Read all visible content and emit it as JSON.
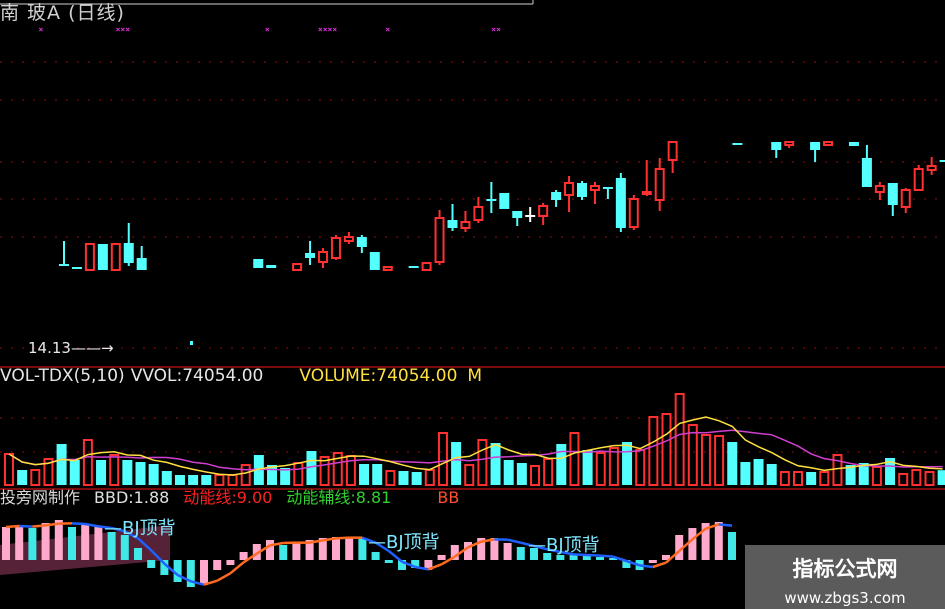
{
  "header": {
    "title": "南 玻A (日线)",
    "signal_row": "        ×               ×××                            ×          ××××          ×                     ××",
    "low_price_label": "14.13——→"
  },
  "volume_header": {
    "name": "VOL-TDX(5,10)",
    "vvol": "VVOL:74054.00",
    "volume": "VOLUME:74054.00",
    "truncated": "M"
  },
  "indicator_header": {
    "source": "投旁网制作",
    "bbd": "BBD:1.88",
    "momentum_line": "动能线:9.00",
    "momentum_aux_line": "动能辅线:8.81",
    "truncated": "BB"
  },
  "indicator_labels": [
    "—BJ顶背",
    "—BJ顶背",
    "—BJ顶背"
  ],
  "watermark": {
    "title": "指标公式网",
    "url": "www.zbgs3.com"
  },
  "colors": {
    "up": "#ff3030",
    "down": "#54ffff",
    "flat": "#ffffff",
    "grid": "#8a1010",
    "ma_short": "#ffe040",
    "ma_long": "#d040d0",
    "indicator_up": "#ffaacc",
    "indicator_down": "#40e8e8",
    "line_falling": "#2060ff",
    "line_rising": "#ff6a20"
  },
  "chart_data": [
    {
      "type": "candlestick",
      "title": "南 玻A (日线)",
      "lowest_marked": 14.13,
      "candles": [
        {
          "i": 0,
          "o": 14.97,
          "c": 14.96,
          "h": 15.2,
          "l": 14.96
        },
        {
          "i": 1,
          "o": 14.94,
          "c": 14.93,
          "h": 14.94,
          "l": 14.93
        },
        {
          "i": 2,
          "o": 14.91,
          "c": 15.17,
          "h": 15.17,
          "l": 14.91
        },
        {
          "i": 3,
          "o": 15.17,
          "c": 14.91,
          "h": 15.17,
          "l": 14.91
        },
        {
          "i": 4,
          "o": 14.91,
          "c": 15.17,
          "h": 15.17,
          "l": 14.91
        },
        {
          "i": 5,
          "o": 15.18,
          "c": 14.98,
          "h": 15.38,
          "l": 14.95
        },
        {
          "i": 6,
          "o": 15.03,
          "c": 14.91,
          "h": 15.15,
          "l": 14.91
        },
        {
          "i": 15,
          "o": 15.02,
          "c": 14.93,
          "h": 15.02,
          "l": 14.93
        },
        {
          "i": 16,
          "o": 14.96,
          "c": 14.93,
          "h": 14.96,
          "l": 14.93
        },
        {
          "i": 18,
          "o": 14.91,
          "c": 14.97,
          "h": 14.97,
          "l": 14.91
        },
        {
          "i": 19,
          "o": 15.08,
          "c": 15.03,
          "h": 15.2,
          "l": 14.96
        },
        {
          "i": 20,
          "o": 14.99,
          "c": 15.09,
          "h": 15.13,
          "l": 14.93
        },
        {
          "i": 21,
          "o": 15.03,
          "c": 15.23,
          "h": 15.26,
          "l": 15.01
        },
        {
          "i": 22,
          "o": 15.2,
          "c": 15.24,
          "h": 15.29,
          "l": 15.17
        },
        {
          "i": 23,
          "o": 15.24,
          "c": 15.14,
          "h": 15.26,
          "l": 15.08
        },
        {
          "i": 24,
          "o": 15.09,
          "c": 14.91,
          "h": 15.09,
          "l": 14.91
        },
        {
          "i": 25,
          "o": 14.91,
          "c": 14.94,
          "h": 14.94,
          "l": 14.91
        },
        {
          "i": 27,
          "o": 14.95,
          "c": 14.93,
          "h": 14.95,
          "l": 14.93
        },
        {
          "i": 28,
          "o": 14.91,
          "c": 14.98,
          "h": 14.98,
          "l": 14.91
        },
        {
          "i": 29,
          "o": 14.99,
          "c": 15.43,
          "h": 15.51,
          "l": 14.96
        },
        {
          "i": 30,
          "o": 15.41,
          "c": 15.33,
          "h": 15.57,
          "l": 15.3
        },
        {
          "i": 31,
          "o": 15.33,
          "c": 15.39,
          "h": 15.5,
          "l": 15.29
        },
        {
          "i": 32,
          "o": 15.41,
          "c": 15.54,
          "h": 15.64,
          "l": 15.38
        },
        {
          "i": 33,
          "o": 15.62,
          "c": 15.6,
          "h": 15.79,
          "l": 15.48
        },
        {
          "i": 34,
          "o": 15.68,
          "c": 15.52,
          "h": 15.68,
          "l": 15.52
        },
        {
          "i": 35,
          "o": 15.5,
          "c": 15.43,
          "h": 15.5,
          "l": 15.35
        },
        {
          "i": 36,
          "o": 15.46,
          "c": 15.46,
          "h": 15.54,
          "l": 15.39
        },
        {
          "i": 37,
          "o": 15.45,
          "c": 15.55,
          "h": 15.58,
          "l": 15.36
        },
        {
          "i": 38,
          "o": 15.69,
          "c": 15.61,
          "h": 15.71,
          "l": 15.54
        },
        {
          "i": 39,
          "o": 15.66,
          "c": 15.78,
          "h": 15.85,
          "l": 15.49
        },
        {
          "i": 40,
          "o": 15.78,
          "c": 15.64,
          "h": 15.8,
          "l": 15.61
        },
        {
          "i": 41,
          "o": 15.71,
          "c": 15.75,
          "h": 15.79,
          "l": 15.57
        },
        {
          "i": 42,
          "o": 15.74,
          "c": 15.72,
          "h": 15.74,
          "l": 15.62
        },
        {
          "i": 43,
          "o": 15.83,
          "c": 15.33,
          "h": 15.88,
          "l": 15.29
        },
        {
          "i": 44,
          "o": 15.34,
          "c": 15.62,
          "h": 15.66,
          "l": 15.31
        },
        {
          "i": 45,
          "o": 15.68,
          "c": 15.69,
          "h": 16.01,
          "l": 15.65
        },
        {
          "i": 46,
          "o": 15.61,
          "c": 15.92,
          "h": 16.03,
          "l": 15.5
        },
        {
          "i": 47,
          "o": 16.01,
          "c": 16.19,
          "h": 16.19,
          "l": 15.88
        },
        {
          "i": 52,
          "o": 16.18,
          "c": 16.17,
          "h": 16.18,
          "l": 16.17
        },
        {
          "i": 55,
          "o": 16.19,
          "c": 16.11,
          "h": 16.19,
          "l": 16.03
        },
        {
          "i": 56,
          "o": 16.16,
          "c": 16.19,
          "h": 16.19,
          "l": 16.13
        },
        {
          "i": 58,
          "o": 16.19,
          "c": 16.11,
          "h": 16.19,
          "l": 15.99
        },
        {
          "i": 59,
          "o": 16.16,
          "c": 16.19,
          "h": 16.19,
          "l": 16.16
        },
        {
          "i": 61,
          "o": 16.19,
          "c": 16.15,
          "h": 16.19,
          "l": 16.15
        },
        {
          "i": 62,
          "o": 16.03,
          "c": 15.74,
          "h": 16.16,
          "l": 15.74
        },
        {
          "i": 63,
          "o": 15.69,
          "c": 15.75,
          "h": 15.79,
          "l": 15.61
        },
        {
          "i": 64,
          "o": 15.78,
          "c": 15.56,
          "h": 15.78,
          "l": 15.45
        },
        {
          "i": 65,
          "o": 15.54,
          "c": 15.71,
          "h": 15.73,
          "l": 15.48
        },
        {
          "i": 66,
          "o": 15.71,
          "c": 15.92,
          "h": 15.96,
          "l": 15.7
        },
        {
          "i": 67,
          "o": 15.91,
          "c": 15.95,
          "h": 16.04,
          "l": 15.86
        },
        {
          "i": 68,
          "o": 16.01,
          "c": 16.0,
          "h": 16.01,
          "l": 16.0
        }
      ]
    },
    {
      "type": "bar",
      "title": "VOL-TDX(5,10)",
      "series": [
        {
          "name": "VOLUME",
          "ma_periods": [
            5,
            10
          ]
        }
      ],
      "ylim": [
        0,
        475000
      ],
      "bars": [
        [
          155000,
          "up"
        ],
        [
          75000,
          "down"
        ],
        [
          75000,
          "up"
        ],
        [
          130000,
          "up"
        ],
        [
          205000,
          "down"
        ],
        [
          125000,
          "down"
        ],
        [
          225000,
          "up"
        ],
        [
          125000,
          "down"
        ],
        [
          150000,
          "up"
        ],
        [
          125000,
          "down"
        ],
        [
          115000,
          "down"
        ],
        [
          105000,
          "down"
        ],
        [
          70000,
          "down"
        ],
        [
          50000,
          "down"
        ],
        [
          50000,
          "down"
        ],
        [
          50000,
          "down"
        ],
        [
          50000,
          "up"
        ],
        [
          50000,
          "up"
        ],
        [
          100000,
          "up"
        ],
        [
          150000,
          "down"
        ],
        [
          100000,
          "down"
        ],
        [
          85000,
          "down"
        ],
        [
          110000,
          "up"
        ],
        [
          170000,
          "down"
        ],
        [
          140000,
          "up"
        ],
        [
          160000,
          "up"
        ],
        [
          145000,
          "up"
        ],
        [
          105000,
          "down"
        ],
        [
          105000,
          "down"
        ],
        [
          70000,
          "up"
        ],
        [
          70000,
          "down"
        ],
        [
          65000,
          "down"
        ],
        [
          75000,
          "up"
        ],
        [
          260000,
          "up"
        ],
        [
          215000,
          "down"
        ],
        [
          100000,
          "up"
        ],
        [
          225000,
          "up"
        ],
        [
          210000,
          "down"
        ],
        [
          125000,
          "down"
        ],
        [
          110000,
          "down"
        ],
        [
          95000,
          "up"
        ],
        [
          130000,
          "up"
        ],
        [
          205000,
          "down"
        ],
        [
          260000,
          "up"
        ],
        [
          175000,
          "down"
        ],
        [
          160000,
          "up"
        ],
        [
          185000,
          "up"
        ],
        [
          215000,
          "down"
        ],
        [
          175000,
          "up"
        ],
        [
          340000,
          "up"
        ],
        [
          355000,
          "up"
        ],
        [
          455000,
          "up"
        ],
        [
          300000,
          "up"
        ],
        [
          250000,
          "up"
        ],
        [
          245000,
          "up"
        ],
        [
          215000,
          "down"
        ],
        [
          115000,
          "down"
        ],
        [
          130000,
          "down"
        ],
        [
          105000,
          "down"
        ],
        [
          65000,
          "up"
        ],
        [
          65000,
          "up"
        ],
        [
          65000,
          "down"
        ],
        [
          65000,
          "up"
        ],
        [
          150000,
          "up"
        ],
        [
          100000,
          "down"
        ],
        [
          110000,
          "down"
        ],
        [
          90000,
          "up"
        ],
        [
          135000,
          "down"
        ],
        [
          55000,
          "up"
        ],
        [
          75000,
          "up"
        ],
        [
          65000,
          "up"
        ],
        [
          74054,
          "down"
        ]
      ]
    },
    {
      "type": "bar",
      "title": "BBD",
      "ylim": [
        -30,
        42
      ],
      "bars": [
        [
          33,
          "up"
        ],
        [
          35,
          "up"
        ],
        [
          32,
          "down"
        ],
        [
          37,
          "up"
        ],
        [
          40,
          "up"
        ],
        [
          33,
          "down"
        ],
        [
          35,
          "up"
        ],
        [
          33,
          "up"
        ],
        [
          28,
          "down"
        ],
        [
          25,
          "down"
        ],
        [
          12,
          "down"
        ],
        [
          -8,
          "down"
        ],
        [
          -15,
          "down"
        ],
        [
          -22,
          "down"
        ],
        [
          -27,
          "down"
        ],
        [
          -25,
          "up"
        ],
        [
          -10,
          "up"
        ],
        [
          -5,
          "up"
        ],
        [
          8,
          "up"
        ],
        [
          16,
          "up"
        ],
        [
          20,
          "up"
        ],
        [
          15,
          "down"
        ],
        [
          17,
          "up"
        ],
        [
          20,
          "up"
        ],
        [
          22,
          "up"
        ],
        [
          23,
          "up"
        ],
        [
          22,
          "up"
        ],
        [
          22,
          "down"
        ],
        [
          8,
          "down"
        ],
        [
          -3,
          "down"
        ],
        [
          -10,
          "down"
        ],
        [
          -8,
          "down"
        ],
        [
          -10,
          "up"
        ],
        [
          5,
          "up"
        ],
        [
          15,
          "up"
        ],
        [
          18,
          "up"
        ],
        [
          22,
          "up"
        ],
        [
          22,
          "up"
        ],
        [
          17,
          "up"
        ],
        [
          13,
          "down"
        ],
        [
          12,
          "down"
        ],
        [
          7,
          "down"
        ],
        [
          5,
          "down"
        ],
        [
          5,
          "down"
        ],
        [
          5,
          "down"
        ],
        [
          3,
          "down"
        ],
        [
          2,
          "down"
        ],
        [
          -8,
          "down"
        ],
        [
          -10,
          "down"
        ],
        [
          -3,
          "up"
        ],
        [
          5,
          "up"
        ],
        [
          25,
          "up"
        ],
        [
          32,
          "up"
        ],
        [
          37,
          "up"
        ],
        [
          38,
          "up"
        ],
        [
          28,
          "down"
        ]
      ]
    }
  ]
}
